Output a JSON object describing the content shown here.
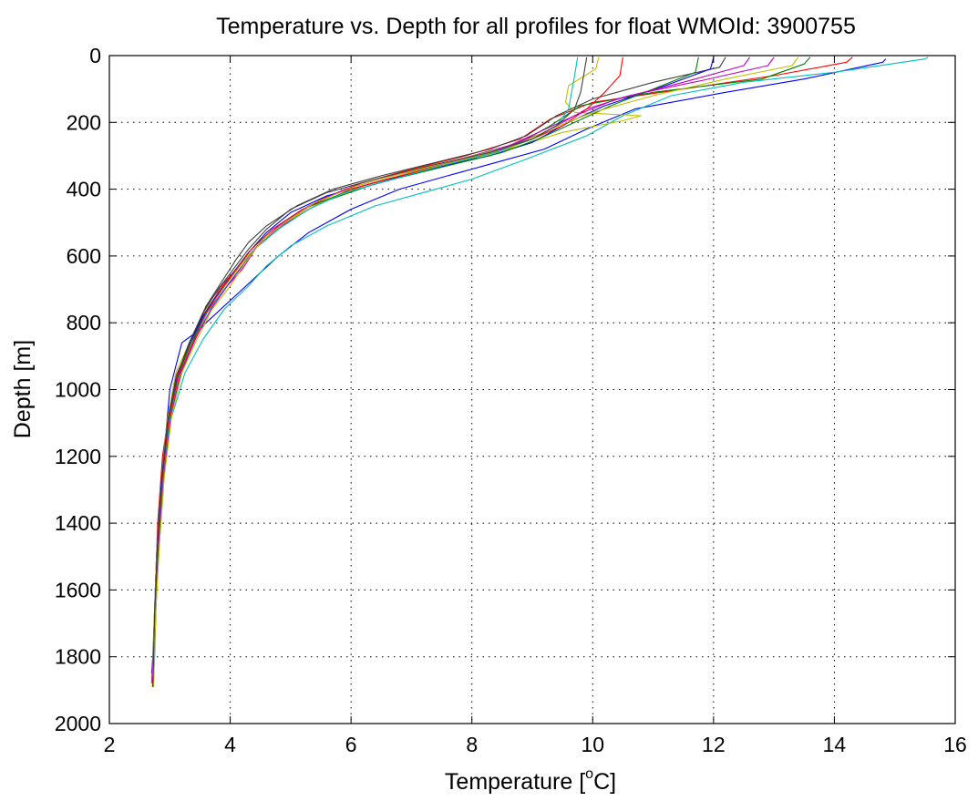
{
  "chart_data": {
    "type": "line",
    "title": "Temperature vs. Depth for all profiles for float WMOId: 3900755",
    "xlabel": "Temperature [",
    "xlabel_sup": "o",
    "xlabel_end": "C]",
    "ylabel": "Depth [m]",
    "xlim": [
      2,
      16
    ],
    "ylim": [
      0,
      2000
    ],
    "y_reversed": true,
    "grid": true,
    "xticks": [
      "2",
      "4",
      "6",
      "8",
      "10",
      "12",
      "14",
      "16"
    ],
    "yticks": [
      "0",
      "200",
      "400",
      "600",
      "800",
      "1000",
      "1200",
      "1400",
      "1600",
      "1800",
      "2000"
    ],
    "colors": [
      "#0000ff",
      "#008000",
      "#ff0000",
      "#00bfbf",
      "#bf00bf",
      "#bfbf00",
      "#404040"
    ],
    "series": [
      {
        "color": "#0000ff",
        "x": [
          14.85,
          14.8,
          13.5,
          12.2,
          10.7,
          9.9,
          9.2,
          8.4,
          7.6,
          6.8,
          6.0,
          5.3,
          4.8,
          4.5,
          4.2,
          3.6,
          3.5,
          3.2,
          3.0,
          2.95,
          2.85,
          2.8,
          2.78,
          2.72,
          2.7
        ],
        "y": [
          10,
          20,
          70,
          110,
          160,
          220,
          280,
          320,
          360,
          400,
          460,
          530,
          600,
          650,
          700,
          800,
          820,
          860,
          1000,
          1100,
          1300,
          1500,
          1600,
          1800,
          1850
        ]
      },
      {
        "color": "#00bfbf",
        "x": [
          15.55,
          15.5,
          14.0,
          12.5,
          11.3,
          10.5,
          9.9,
          8.9,
          8.0,
          7.2,
          6.4,
          5.6,
          5.0,
          4.6,
          4.3,
          3.9,
          3.55,
          3.25,
          3.0,
          2.9,
          2.85,
          2.78,
          2.75,
          2.72
        ],
        "y": [
          5,
          10,
          50,
          80,
          120,
          180,
          240,
          310,
          370,
          410,
          450,
          510,
          570,
          630,
          690,
          760,
          850,
          950,
          1100,
          1250,
          1400,
          1600,
          1800,
          1890
        ]
      },
      {
        "color": "#ff0000",
        "x": [
          14.3,
          14.2,
          13.0,
          11.5,
          10.0,
          9.3,
          8.8,
          7.9,
          7.0,
          6.2,
          5.5,
          4.9,
          4.5,
          4.2,
          3.9,
          3.6,
          3.35,
          3.15,
          3.0,
          2.88,
          2.8,
          2.76,
          2.72
        ],
        "y": [
          5,
          20,
          60,
          100,
          140,
          190,
          250,
          300,
          340,
          380,
          430,
          500,
          560,
          620,
          680,
          750,
          850,
          950,
          1050,
          1200,
          1400,
          1600,
          1880
        ]
      },
      {
        "color": "#008000",
        "x": [
          13.6,
          13.5,
          12.8,
          11.0,
          9.8,
          9.3,
          8.8,
          8.0,
          7.1,
          6.3,
          5.5,
          4.9,
          4.5,
          4.2,
          3.95,
          3.7,
          3.5,
          3.3,
          3.1,
          2.95,
          2.85,
          2.78,
          2.74,
          2.72
        ],
        "y": [
          5,
          25,
          70,
          110,
          150,
          210,
          260,
          310,
          350,
          390,
          440,
          500,
          560,
          620,
          680,
          740,
          800,
          900,
          1000,
          1150,
          1300,
          1500,
          1700,
          1890
        ]
      },
      {
        "color": "#bf00bf",
        "x": [
          13.0,
          12.9,
          11.8,
          10.6,
          9.9,
          9.2,
          8.6,
          7.6,
          6.8,
          6.0,
          5.4,
          4.85,
          4.45,
          4.2,
          3.9,
          3.6,
          3.35,
          3.1,
          2.95,
          2.85,
          2.78,
          2.74,
          2.7
        ],
        "y": [
          5,
          30,
          75,
          120,
          160,
          230,
          270,
          320,
          360,
          400,
          450,
          510,
          570,
          640,
          700,
          770,
          860,
          960,
          1100,
          1300,
          1500,
          1700,
          1880
        ]
      },
      {
        "color": "#bfbf00",
        "x": [
          10.1,
          10.05,
          9.6,
          9.55,
          9.7,
          10.8,
          10.5,
          9.5,
          8.8,
          7.9,
          7.0,
          6.2,
          5.5,
          4.9,
          4.5,
          4.2,
          3.9,
          3.6,
          3.35,
          3.1,
          2.95,
          2.85,
          2.78,
          2.74,
          2.71
        ],
        "y": [
          5,
          40,
          90,
          140,
          170,
          180,
          195,
          230,
          270,
          310,
          350,
          390,
          440,
          500,
          560,
          620,
          690,
          760,
          850,
          950,
          1100,
          1300,
          1500,
          1700,
          1890
        ]
      },
      {
        "color": "#404040",
        "x": [
          12.2,
          12.1,
          11.0,
          10.0,
          9.4,
          8.9,
          8.3,
          7.4,
          6.5,
          5.7,
          5.1,
          4.6,
          4.3,
          4.1,
          3.85,
          3.6,
          3.4,
          3.15,
          3.0,
          2.9,
          2.82,
          2.76,
          2.72
        ],
        "y": [
          5,
          35,
          80,
          130,
          180,
          240,
          280,
          320,
          360,
          400,
          450,
          510,
          560,
          610,
          680,
          750,
          840,
          950,
          1080,
          1250,
          1450,
          1650,
          1880
        ]
      },
      {
        "color": "#0000ff",
        "x": [
          12.0,
          11.95,
          11.2,
          10.2,
          9.6,
          9.0,
          8.3,
          7.3,
          6.4,
          5.6,
          5.0,
          4.6,
          4.3,
          4.05,
          3.8,
          3.55,
          3.3,
          3.1,
          2.96,
          2.86,
          2.79,
          2.75,
          2.72
        ],
        "y": [
          5,
          40,
          90,
          150,
          200,
          260,
          300,
          340,
          380,
          420,
          470,
          530,
          590,
          650,
          710,
          780,
          870,
          970,
          1100,
          1280,
          1480,
          1680,
          1890
        ]
      },
      {
        "color": "#008000",
        "x": [
          11.75,
          11.7,
          11.0,
          10.3,
          9.7,
          9.1,
          8.5,
          7.6,
          6.7,
          5.9,
          5.2,
          4.7,
          4.35,
          4.1,
          3.85,
          3.6,
          3.35,
          3.12,
          2.97,
          2.87,
          2.8,
          2.75,
          2.72
        ],
        "y": [
          5,
          50,
          100,
          150,
          200,
          250,
          290,
          330,
          370,
          410,
          460,
          520,
          580,
          640,
          700,
          770,
          860,
          960,
          1090,
          1270,
          1470,
          1670,
          1890
        ]
      },
      {
        "color": "#ff0000",
        "x": [
          10.5,
          10.45,
          10.2,
          9.9,
          9.5,
          9.0,
          8.4,
          7.5,
          6.6,
          5.8,
          5.2,
          4.7,
          4.35,
          4.1,
          3.85,
          3.6,
          3.38,
          3.14,
          2.98,
          2.88,
          2.8,
          2.76,
          2.72
        ],
        "y": [
          5,
          60,
          110,
          160,
          210,
          250,
          290,
          330,
          370,
          410,
          460,
          520,
          580,
          640,
          700,
          770,
          860,
          960,
          1090,
          1270,
          1470,
          1670,
          1890
        ]
      },
      {
        "color": "#00bfbf",
        "x": [
          9.75,
          9.7,
          9.65,
          9.6,
          9.4,
          9.0,
          8.4,
          7.5,
          6.7,
          5.9,
          5.3,
          4.8,
          4.4,
          4.15,
          3.9,
          3.62,
          3.4,
          3.16,
          3.0,
          2.89,
          2.81,
          2.76,
          2.72
        ],
        "y": [
          5,
          60,
          110,
          160,
          210,
          250,
          290,
          330,
          370,
          410,
          460,
          520,
          580,
          640,
          700,
          770,
          860,
          960,
          1090,
          1270,
          1470,
          1670,
          1890
        ]
      },
      {
        "color": "#bf00bf",
        "x": [
          12.6,
          12.5,
          11.5,
          10.4,
          9.7,
          9.1,
          8.5,
          7.6,
          6.7,
          5.9,
          5.3,
          4.8,
          4.45,
          4.2,
          3.95,
          3.68,
          3.42,
          3.18,
          3.02,
          2.9,
          2.82,
          2.77,
          2.73
        ],
        "y": [
          5,
          30,
          80,
          130,
          180,
          230,
          280,
          320,
          360,
          400,
          450,
          510,
          570,
          630,
          690,
          760,
          850,
          950,
          1080,
          1260,
          1460,
          1660,
          1890
        ]
      },
      {
        "color": "#bfbf00",
        "x": [
          13.4,
          13.3,
          12.2,
          11.0,
          10.0,
          9.3,
          8.7,
          7.8,
          6.9,
          6.1,
          5.4,
          4.9,
          4.5,
          4.25,
          4.0,
          3.7,
          3.45,
          3.2,
          3.03,
          2.91,
          2.83,
          2.77,
          2.73
        ],
        "y": [
          5,
          30,
          70,
          120,
          170,
          220,
          270,
          310,
          350,
          390,
          440,
          500,
          560,
          620,
          690,
          760,
          850,
          950,
          1080,
          1260,
          1460,
          1660,
          1890
        ]
      },
      {
        "color": "#404040",
        "x": [
          9.9,
          9.85,
          9.8,
          9.7,
          9.4,
          9.0,
          8.3,
          7.3,
          6.4,
          5.6,
          5.0,
          4.6,
          4.3,
          4.05,
          3.8,
          3.55,
          3.32,
          3.12,
          2.97,
          2.87,
          2.8,
          2.75,
          2.72
        ],
        "y": [
          5,
          60,
          110,
          160,
          210,
          250,
          290,
          330,
          370,
          410,
          460,
          520,
          580,
          640,
          700,
          770,
          860,
          960,
          1090,
          1270,
          1470,
          1670,
          1890
        ]
      }
    ]
  }
}
